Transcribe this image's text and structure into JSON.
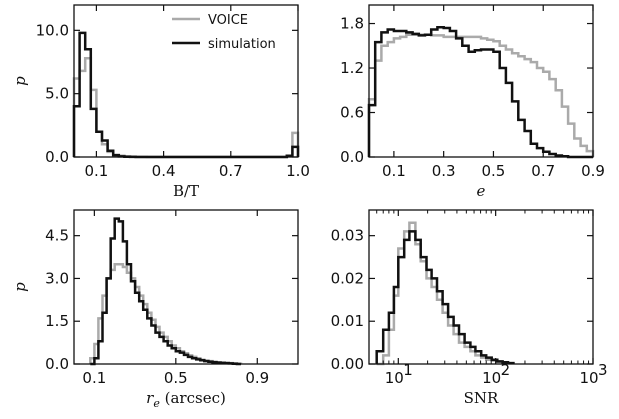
{
  "colors": {
    "voice": "#aaaaaa",
    "simulation": "#111111",
    "axis": "#111111"
  },
  "legend": {
    "placement": "top-right of first panel",
    "entries": [
      "VOICE",
      "simulation"
    ]
  },
  "chart_data": [
    {
      "type": "line",
      "ylabel": "p",
      "xlabel": "B/T",
      "xlim": [
        0.0,
        1.0
      ],
      "ylim": [
        0,
        12
      ],
      "xticks": [
        {
          "v": 0.1,
          "label": "0.1"
        },
        {
          "v": 0.4,
          "label": "0.4"
        },
        {
          "v": 0.7,
          "label": "0.7"
        },
        {
          "v": 1.0,
          "label": "1.0"
        }
      ],
      "yticks": [
        {
          "v": 0,
          "label": "0.0"
        },
        {
          "v": 5,
          "label": "5.0"
        },
        {
          "v": 10,
          "label": "10.0"
        }
      ],
      "bin_start": 0.0,
      "bin_width": 0.025,
      "series": [
        {
          "name": "VOICE",
          "values": [
            6.2,
            6.8,
            7.8,
            5.3,
            2.0,
            1.0,
            0.4,
            0.15,
            0.1,
            0.05,
            0.03,
            0.02,
            0.02,
            0.01,
            0.01,
            0.01,
            0.01,
            0.01,
            0.01,
            0.01,
            0.01,
            0.01,
            0.01,
            0.01,
            0.01,
            0.01,
            0.01,
            0.01,
            0.01,
            0.01,
            0.01,
            0.01,
            0.01,
            0.01,
            0.01,
            0.01,
            0.01,
            0.01,
            0.1,
            1.9
          ]
        },
        {
          "name": "simulation",
          "values": [
            4.0,
            9.8,
            8.5,
            3.8,
            2.0,
            1.3,
            0.5,
            0.15,
            0.05,
            0.02,
            0.01,
            0.0,
            0.0,
            0.0,
            0.0,
            0.0,
            0.0,
            0.0,
            0.0,
            0.0,
            0.0,
            0.0,
            0.0,
            0.0,
            0.0,
            0.0,
            0.0,
            0.0,
            0.0,
            0.0,
            0.0,
            0.0,
            0.0,
            0.0,
            0.0,
            0.0,
            0.0,
            0.0,
            0.1,
            0.8
          ]
        }
      ]
    },
    {
      "type": "line",
      "ylabel": "",
      "xlabel": "e",
      "xlim": [
        0.0,
        0.9
      ],
      "ylim": [
        0,
        2.05
      ],
      "xticks": [
        {
          "v": 0.1,
          "label": "0.1"
        },
        {
          "v": 0.3,
          "label": "0.3"
        },
        {
          "v": 0.5,
          "label": "0.5"
        },
        {
          "v": 0.7,
          "label": "0.7"
        },
        {
          "v": 0.9,
          "label": "0.9"
        }
      ],
      "yticks": [
        {
          "v": 0,
          "label": "0.0"
        },
        {
          "v": 0.6,
          "label": "0.6"
        },
        {
          "v": 1.2,
          "label": "1.2"
        },
        {
          "v": 1.8,
          "label": "1.8"
        }
      ],
      "bin_start": 0.0,
      "bin_width": 0.025,
      "series": [
        {
          "name": "VOICE",
          "values": [
            0.78,
            1.3,
            1.5,
            1.55,
            1.6,
            1.62,
            1.65,
            1.65,
            1.65,
            1.65,
            1.64,
            1.64,
            1.62,
            1.62,
            1.62,
            1.62,
            1.62,
            1.62,
            1.6,
            1.58,
            1.56,
            1.5,
            1.45,
            1.4,
            1.36,
            1.32,
            1.28,
            1.2,
            1.15,
            1.05,
            0.9,
            0.68,
            0.45,
            0.25,
            0.15,
            0.08
          ]
        },
        {
          "name": "simulation",
          "values": [
            0.7,
            1.55,
            1.68,
            1.72,
            1.7,
            1.7,
            1.68,
            1.66,
            1.64,
            1.65,
            1.72,
            1.75,
            1.74,
            1.7,
            1.6,
            1.5,
            1.42,
            1.44,
            1.45,
            1.45,
            1.42,
            1.2,
            1.0,
            0.75,
            0.5,
            0.35,
            0.18,
            0.12,
            0.07,
            0.04,
            0.02,
            0.01,
            0.0,
            0.0,
            0.0,
            0.0
          ]
        }
      ]
    },
    {
      "type": "line",
      "ylabel": "p",
      "xlabel": "r_e (arcsec)",
      "xlim": [
        0.0,
        1.1
      ],
      "ylim": [
        0,
        5.4
      ],
      "xticks": [
        {
          "v": 0.1,
          "label": "0.1"
        },
        {
          "v": 0.5,
          "label": "0.5"
        },
        {
          "v": 0.9,
          "label": "0.9"
        }
      ],
      "yticks": [
        {
          "v": 0,
          "label": "0.0"
        },
        {
          "v": 1.5,
          "label": "1.5"
        },
        {
          "v": 3.0,
          "label": "3.0"
        },
        {
          "v": 4.5,
          "label": "4.5"
        }
      ],
      "bin_start": 0.08,
      "bin_width": 0.02,
      "series": [
        {
          "name": "VOICE",
          "values": [
            0.2,
            0.7,
            1.6,
            2.4,
            3.0,
            3.3,
            3.5,
            3.5,
            3.4,
            3.2,
            3.0,
            2.7,
            2.4,
            2.1,
            1.8,
            1.55,
            1.3,
            1.1,
            0.95,
            0.8,
            0.65,
            0.55,
            0.45,
            0.38,
            0.3,
            0.25,
            0.2,
            0.15,
            0.12,
            0.1,
            0.08,
            0.06,
            0.05,
            0.04,
            0.03,
            0.02,
            0.01
          ]
        },
        {
          "name": "simulation",
          "values": [
            0.0,
            0.2,
            0.8,
            1.8,
            3.0,
            4.4,
            5.1,
            5.0,
            4.3,
            3.5,
            2.9,
            2.5,
            2.2,
            1.9,
            1.6,
            1.35,
            1.1,
            0.95,
            0.8,
            0.65,
            0.55,
            0.45,
            0.4,
            0.32,
            0.25,
            0.2,
            0.16,
            0.13,
            0.1,
            0.08,
            0.06,
            0.05,
            0.04,
            0.03,
            0.02,
            0.01,
            0.0
          ]
        }
      ]
    },
    {
      "type": "line",
      "ylabel": "",
      "xlabel": "SNR",
      "xscale": "log",
      "xlim": [
        5,
        1000
      ],
      "ylim": [
        0,
        0.036
      ],
      "xticks": [
        {
          "v": 10,
          "label": "10",
          "exp": "1"
        },
        {
          "v": 100,
          "label": "10",
          "exp": "2"
        },
        {
          "v": 1000,
          "label": "10",
          "exp": "3"
        }
      ],
      "yticks": [
        {
          "v": 0,
          "label": "0.00"
        },
        {
          "v": 0.01,
          "label": "0.01"
        },
        {
          "v": 0.02,
          "label": "0.02"
        },
        {
          "v": 0.03,
          "label": "0.03"
        }
      ],
      "bin_edges": [
        6.0,
        7.0,
        8.0,
        9.0,
        10.0,
        11.5,
        13.0,
        15.0,
        17.0,
        19.5,
        22.0,
        25.0,
        28.5,
        32.5,
        37.0,
        42.0,
        48.0,
        55.0,
        62.0,
        71.0,
        80.0,
        91.0,
        104.0,
        118.0,
        134.0,
        152.0
      ],
      "series": [
        {
          "name": "VOICE",
          "values": [
            0.0,
            0.002,
            0.008,
            0.016,
            0.027,
            0.031,
            0.033,
            0.028,
            0.024,
            0.02,
            0.018,
            0.015,
            0.012,
            0.009,
            0.007,
            0.005,
            0.004,
            0.003,
            0.002,
            0.0015,
            0.001,
            0.0008,
            0.0005,
            0.0003,
            0.0002
          ]
        },
        {
          "name": "simulation",
          "values": [
            0.003,
            0.008,
            0.012,
            0.018,
            0.025,
            0.029,
            0.031,
            0.029,
            0.025,
            0.022,
            0.02,
            0.017,
            0.014,
            0.011,
            0.009,
            0.007,
            0.005,
            0.004,
            0.003,
            0.002,
            0.0015,
            0.001,
            0.0006,
            0.0004,
            0.0002
          ]
        }
      ]
    }
  ]
}
